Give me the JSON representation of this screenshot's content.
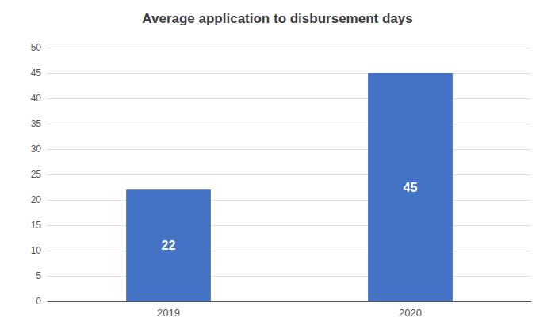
{
  "chart_data": {
    "type": "bar",
    "title": "Average application to disbursement days",
    "categories": [
      "2019",
      "2020"
    ],
    "values": [
      22,
      45
    ],
    "color": "#4472C4",
    "ylim": [
      0,
      50
    ],
    "yticks": [
      0,
      5,
      10,
      15,
      20,
      25,
      30,
      35,
      40,
      45,
      50
    ],
    "grid": true,
    "data_labels": true
  }
}
